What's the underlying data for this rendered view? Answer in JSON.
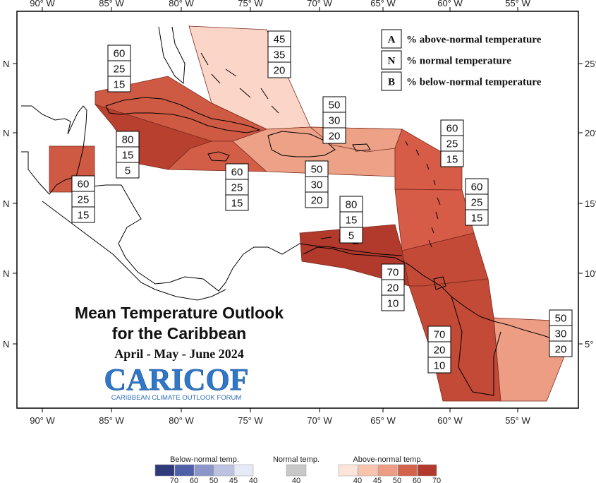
{
  "title_line1": "Mean Temperature Outlook",
  "title_line2": "for the Caribbean",
  "subtitle": "April - May - June 2024",
  "logo": {
    "text": "CARICOF",
    "tagline": "CARIBBEAN CLIMATE OUTLOOK FORUM"
  },
  "legend": [
    {
      "letter": "A",
      "label": "% above-normal temperature"
    },
    {
      "letter": "N",
      "label": "% normal temperature"
    },
    {
      "letter": "B",
      "label": "% below-normal temperature"
    }
  ],
  "axes": {
    "lon_labels": [
      "90° W",
      "85° W",
      "80° W",
      "75° W",
      "70° W",
      "65° W",
      "60° W",
      "55° W"
    ],
    "lat_labels_left": [
      "N",
      "N",
      "N",
      "N",
      "N"
    ],
    "lat_labels_right": [
      "25°",
      "20°",
      "15°",
      "10°",
      "5°"
    ]
  },
  "regions": [
    {
      "id": "bahamas",
      "A": 45,
      "N": 35,
      "B": 20,
      "color": "#fbd6c8"
    },
    {
      "id": "cuba",
      "A": 60,
      "N": 25,
      "B": 15,
      "color": "#cf5a43"
    },
    {
      "id": "cayman-jamaica-west",
      "A": 80,
      "N": 15,
      "B": 5,
      "color": "#b8402f"
    },
    {
      "id": "belize",
      "A": 60,
      "N": 25,
      "B": 15,
      "color": "#cf5a43"
    },
    {
      "id": "jamaica-haiti",
      "A": 60,
      "N": 25,
      "B": 15,
      "color": "#d35e48"
    },
    {
      "id": "hispaniola-puerto-rico",
      "A": 50,
      "N": 30,
      "B": 20,
      "color": "#eda288"
    },
    {
      "id": "northern-antilles",
      "A": 50,
      "N": 30,
      "B": 20,
      "color": "#eda288"
    },
    {
      "id": "leeward-islands",
      "A": 60,
      "N": 25,
      "B": 15,
      "color": "#d65c47"
    },
    {
      "id": "windward-islands",
      "A": 60,
      "N": 25,
      "B": 15,
      "color": "#d65c47"
    },
    {
      "id": "abc-islands",
      "A": 80,
      "N": 15,
      "B": 5,
      "color": "#b13a2c"
    },
    {
      "id": "trinidad",
      "A": 70,
      "N": 20,
      "B": 10,
      "color": "#c24a37"
    },
    {
      "id": "guyana",
      "A": 70,
      "N": 20,
      "B": 10,
      "color": "#c24a37"
    },
    {
      "id": "suriname-french-guiana",
      "A": 50,
      "N": 30,
      "B": 20,
      "color": "#ec9d84"
    }
  ],
  "colorbar": {
    "below": {
      "title": "Below-normal temp.",
      "ticks": [
        "70",
        "60",
        "50",
        "45",
        "40"
      ],
      "colors": [
        "#2f3a7a",
        "#5060a8",
        "#8d96c8",
        "#bcc2e2",
        "#e6e9f6"
      ]
    },
    "normal": {
      "title": "Normal temp.",
      "ticks": [
        "40"
      ],
      "colors": [
        "#c8c8c8"
      ]
    },
    "above": {
      "title": "Above-normal temp.",
      "ticks": [
        "40",
        "45",
        "50",
        "60",
        "70"
      ],
      "colors": [
        "#fce4da",
        "#f8c4ae",
        "#ec9d84",
        "#d3634b",
        "#b13a2c"
      ]
    }
  }
}
